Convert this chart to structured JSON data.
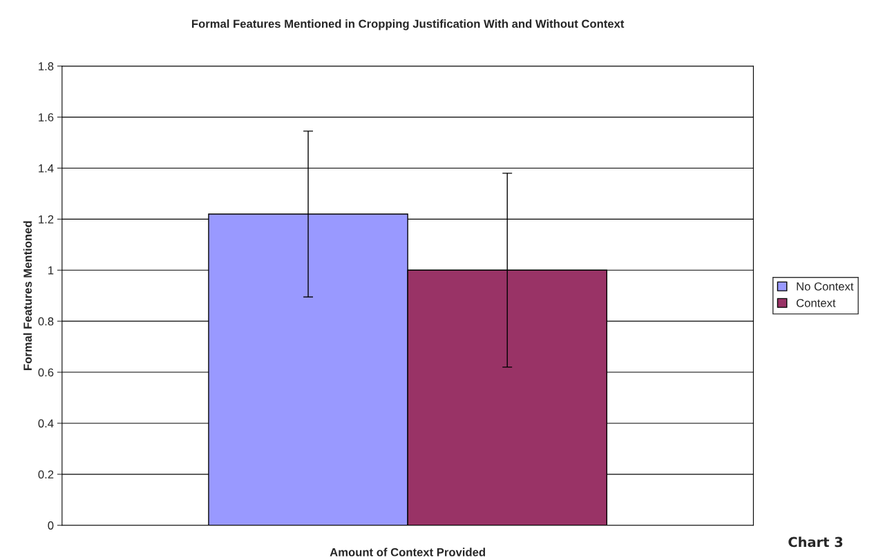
{
  "chart_data": {
    "type": "bar",
    "title": "Formal Features Mentioned in Cropping Justification With and Without Context",
    "xlabel": "Amount of Context Provided",
    "ylabel": "Formal Features Mentioned",
    "categories": [
      null
    ],
    "series": [
      {
        "name": "No Context",
        "color": "#9999ff",
        "values": [
          1.22
        ],
        "errors": [
          0.325
        ]
      },
      {
        "name": "Context",
        "color": "#993366",
        "values": [
          1.0
        ],
        "errors": [
          0.38
        ]
      }
    ],
    "ylim": [
      0,
      1.8
    ],
    "yticks": [
      0,
      0.2,
      0.4,
      0.6,
      0.8,
      1,
      1.2,
      1.4,
      1.6,
      1.8
    ],
    "grid": "y",
    "legend": "right",
    "annotations": [
      "Chart 3"
    ]
  }
}
